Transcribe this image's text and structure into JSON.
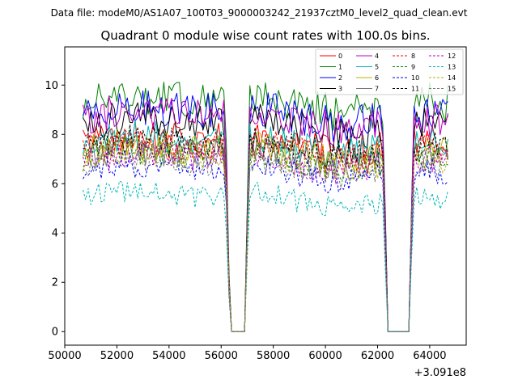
{
  "figure": {
    "suptitle": "Data file: modeM0/AS1A07_100T03_9000003242_21937cztM0_level2_quad_clean.evt"
  },
  "chart_data": {
    "type": "line",
    "title": "Quadrant 0 module wise count rates with 100.0s bins.",
    "xlabel": "",
    "ylabel": "",
    "x_offset_label": "+3.091e8",
    "xlim": [
      50000,
      65400
    ],
    "ylim": [
      -0.55,
      11.55
    ],
    "x_ticks": [
      50000,
      52000,
      54000,
      56000,
      58000,
      60000,
      62000,
      64000
    ],
    "x_tick_labels": [
      "50000",
      "52000",
      "54000",
      "56000",
      "58000",
      "60000",
      "62000",
      "64000"
    ],
    "y_ticks": [
      0,
      2,
      4,
      6,
      8,
      10
    ],
    "y_tick_labels": [
      "0",
      "2",
      "4",
      "6",
      "8",
      "10"
    ],
    "legend_location": "upper right",
    "time_range": [
      50700,
      64700
    ],
    "bin_size_s": 100,
    "gaps": [
      [
        56350,
        56950
      ],
      [
        62400,
        63250
      ]
    ],
    "series": [
      {
        "name": "0",
        "color": "#ff0000",
        "style": "solid",
        "mean": 7.7
      },
      {
        "name": "1",
        "color": "#008000",
        "style": "solid",
        "mean": 9.3
      },
      {
        "name": "2",
        "color": "#0000ff",
        "style": "solid",
        "mean": 8.8
      },
      {
        "name": "3",
        "color": "#000000",
        "style": "solid",
        "mean": 8.4
      },
      {
        "name": "4",
        "color": "#c000c0",
        "style": "solid",
        "mean": 8.6
      },
      {
        "name": "5",
        "color": "#00b7b7",
        "style": "solid",
        "mean": 7.7
      },
      {
        "name": "6",
        "color": "#b5b500",
        "style": "solid",
        "mean": 7.3
      },
      {
        "name": "7",
        "color": "#777777",
        "style": "solid",
        "mean": 7.1
      },
      {
        "name": "8",
        "color": "#ff0000",
        "style": "dashed",
        "mean": 7.4
      },
      {
        "name": "9",
        "color": "#008000",
        "style": "dashed",
        "mean": 7.1
      },
      {
        "name": "10",
        "color": "#0000ff",
        "style": "dashed",
        "mean": 6.5
      },
      {
        "name": "11",
        "color": "#000000",
        "style": "dashed",
        "mean": 7.5
      },
      {
        "name": "12",
        "color": "#c000c0",
        "style": "dashed",
        "mean": 6.9
      },
      {
        "name": "13",
        "color": "#00b7b7",
        "style": "dashed",
        "mean": 5.4
      },
      {
        "name": "14",
        "color": "#b5b500",
        "style": "dashed",
        "mean": 7.0
      },
      {
        "name": "15",
        "color": "#777777",
        "style": "dashed",
        "mean": 6.8
      }
    ]
  }
}
